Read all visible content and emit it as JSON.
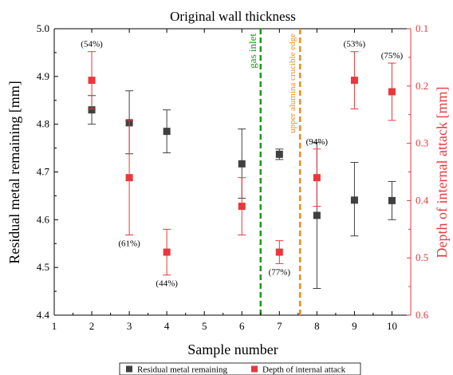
{
  "chart_data": {
    "type": "scatter",
    "title": "Original wall thickness",
    "xlabel": "Sample number",
    "ylabel_left": "Residual metal remaining [mm]",
    "ylabel_right": "Depth of internal attack [mm]",
    "xlim": [
      1,
      10.5
    ],
    "ylim_left": [
      4.4,
      5.0
    ],
    "ylim_right": [
      0.1,
      0.6
    ],
    "right_axis_inverted": true,
    "x_ticks": [
      1,
      2,
      3,
      4,
      5,
      6,
      7,
      8,
      9,
      10
    ],
    "y_ticks_left": [
      4.4,
      4.5,
      4.6,
      4.7,
      4.8,
      4.9,
      5.0
    ],
    "y_ticks_right": [
      0.1,
      0.2,
      0.3,
      0.4,
      0.5,
      0.6
    ],
    "series": [
      {
        "name": "Residual metal remaining",
        "axis": "left",
        "color": "#404040",
        "points": [
          {
            "x": 2,
            "y": 4.83,
            "err_low": 4.8,
            "err_high": 4.86
          },
          {
            "x": 3,
            "y": 4.803,
            "err_low": 4.738,
            "err_high": 4.87
          },
          {
            "x": 4,
            "y": 4.785,
            "err_low": 4.74,
            "err_high": 4.83
          },
          {
            "x": 6,
            "y": 4.717,
            "err_low": 4.645,
            "err_high": 4.79
          },
          {
            "x": 7,
            "y": 4.737,
            "err_low": 4.726,
            "err_high": 4.748
          },
          {
            "x": 8,
            "y": 4.609,
            "err_low": 4.456,
            "err_high": 4.762
          },
          {
            "x": 9,
            "y": 4.641,
            "err_low": 4.566,
            "err_high": 4.72
          },
          {
            "x": 10,
            "y": 4.64,
            "err_low": 4.6,
            "err_high": 4.68
          }
        ]
      },
      {
        "name": "Depth of internal attack",
        "axis": "right",
        "color": "#e8383d",
        "points": [
          {
            "x": 2,
            "y": 0.19,
            "err_low": 0.14,
            "err_high": 0.24,
            "label": "(54%)"
          },
          {
            "x": 3,
            "y": 0.36,
            "err_low": 0.26,
            "err_high": 0.46,
            "label": "(61%)"
          },
          {
            "x": 4,
            "y": 0.49,
            "err_low": 0.45,
            "err_high": 0.53,
            "label": "(44%)"
          },
          {
            "x": 6,
            "y": 0.41,
            "err_low": 0.36,
            "err_high": 0.46,
            "label": ""
          },
          {
            "x": 7,
            "y": 0.49,
            "err_low": 0.47,
            "err_high": 0.51,
            "label": "(77%)"
          },
          {
            "x": 8,
            "y": 0.36,
            "err_low": 0.31,
            "err_high": 0.41,
            "label": "(94%)"
          },
          {
            "x": 9,
            "y": 0.19,
            "err_low": 0.14,
            "err_high": 0.24,
            "label": "(53%)"
          },
          {
            "x": 10,
            "y": 0.21,
            "err_low": 0.16,
            "err_high": 0.26,
            "label": "(75%)"
          }
        ]
      }
    ],
    "vlines": [
      {
        "x": 6.5,
        "label": "gas inlet",
        "color": "#1a9a1a"
      },
      {
        "x": 7.55,
        "label": "upper alumina crucible edge",
        "color": "#f28a1a"
      }
    ],
    "legend": {
      "placement": "bottom",
      "entries": [
        "Residual metal remaining",
        "Depth of internal attack"
      ]
    }
  }
}
